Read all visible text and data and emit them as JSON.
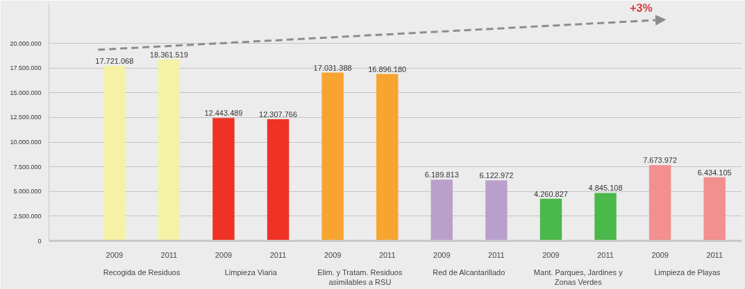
{
  "chart_data": {
    "type": "bar",
    "categories": [
      "Recogida de Residuos",
      "Limpieza Viaria",
      "Elim. y Tratam. Residuos asimilables a RSU",
      "Red de Alcantarillado",
      "Mant. Parques, Jardines y Zonas Verdes",
      "Limpieza de Playas"
    ],
    "series": [
      {
        "name": "2009",
        "colors": [
          "#f5f2a6",
          "#ee3224",
          "#f7a530",
          "#b9a0cb",
          "#4ab84a",
          "#f28f8f"
        ],
        "values": [
          17721068,
          12443489,
          17031388,
          6189813,
          4260827,
          7673972
        ],
        "value_labels": [
          "17.721.068",
          "12.443.489",
          "17.031.388",
          "6.189.813",
          "4.260.827",
          "7.673.972"
        ]
      },
      {
        "name": "2011",
        "colors": [
          "#f5f2a6",
          "#ee3224",
          "#f7a530",
          "#b9a0cb",
          "#4ab84a",
          "#f28f8f"
        ],
        "values": [
          18361519,
          12307766,
          16896180,
          6122972,
          4845108,
          6434105
        ],
        "value_labels": [
          "18.361.519",
          "12.307.766",
          "16.896.180",
          "6.122.972",
          "4.845.108",
          "6.434.105"
        ]
      }
    ],
    "ylim": [
      0,
      24000000
    ],
    "yticks": [
      0,
      {
        "value": 2500000,
        "label": "2.500.000"
      },
      {
        "value": 5000000,
        "label": "5.000.000"
      },
      {
        "value": 7500000,
        "label": "7.500.000"
      },
      {
        "value": 10000000,
        "label": "10.000.000"
      },
      {
        "value": 12500000,
        "label": "12.500.000"
      },
      {
        "value": 15000000,
        "label": "15.000.000"
      },
      {
        "value": 17500000,
        "label": "17.500.000"
      },
      {
        "value": 20000000,
        "label": "20.000.000"
      }
    ],
    "grid": "y",
    "annotations": [
      "+3%"
    ]
  }
}
